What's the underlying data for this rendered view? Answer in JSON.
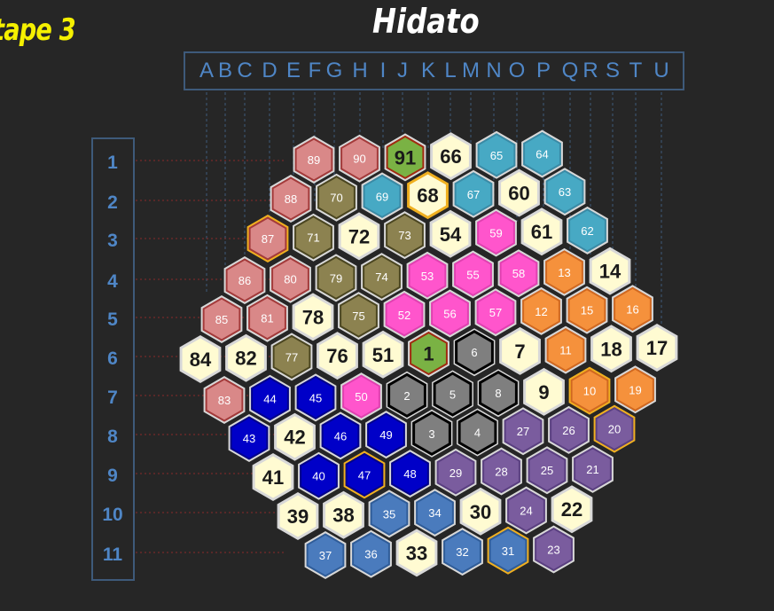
{
  "header": {
    "stage": "tape 3",
    "title": "Hidato"
  },
  "columns": [
    "A",
    "B",
    "C",
    "D",
    "E",
    "F",
    "G",
    "H",
    "I",
    "J",
    "K",
    "L",
    "M",
    "N",
    "O",
    "P",
    "Q",
    "R",
    "S",
    "T",
    "U"
  ],
  "rows": [
    "1",
    "2",
    "3",
    "4",
    "5",
    "6",
    "7",
    "8",
    "9",
    "10",
    "11"
  ],
  "colors": {
    "pink": "#d98888",
    "olive": "#8c8250",
    "teal": "#47a9c4",
    "cream": "#fffbd2",
    "magenta": "#ff55cc",
    "orange": "#f5913c",
    "gray": "#7f7f7f",
    "blue": "#0000c8",
    "purple": "#7a5c9e",
    "steel": "#4a7bbd",
    "green": "#7ab244"
  },
  "cells": [
    [
      [
        "89",
        "pink"
      ],
      [
        "90",
        "pink"
      ],
      [
        "91",
        "green"
      ],
      [
        "66",
        "cream"
      ],
      [
        "65",
        "teal"
      ],
      [
        "64",
        "teal"
      ]
    ],
    [
      [
        "88",
        "pink"
      ],
      [
        "70",
        "olive"
      ],
      [
        "69",
        "teal"
      ],
      [
        "68",
        "cream"
      ],
      [
        "67",
        "teal"
      ],
      [
        "60",
        "cream"
      ],
      [
        "63",
        "teal"
      ]
    ],
    [
      [
        "87",
        "pink"
      ],
      [
        "71",
        "olive"
      ],
      [
        "72",
        "cream"
      ],
      [
        "73",
        "olive"
      ],
      [
        "54",
        "cream"
      ],
      [
        "59",
        "magenta"
      ],
      [
        "61",
        "cream"
      ],
      [
        "62",
        "teal"
      ]
    ],
    [
      [
        "86",
        "pink"
      ],
      [
        "80",
        "pink"
      ],
      [
        "79",
        "olive"
      ],
      [
        "74",
        "olive"
      ],
      [
        "53",
        "magenta"
      ],
      [
        "55",
        "magenta"
      ],
      [
        "58",
        "magenta"
      ],
      [
        "13",
        "orange"
      ],
      [
        "14",
        "cream"
      ]
    ],
    [
      [
        "85",
        "pink"
      ],
      [
        "81",
        "pink"
      ],
      [
        "78",
        "cream"
      ],
      [
        "75",
        "olive"
      ],
      [
        "52",
        "magenta"
      ],
      [
        "56",
        "magenta"
      ],
      [
        "57",
        "magenta"
      ],
      [
        "12",
        "orange"
      ],
      [
        "15",
        "orange"
      ],
      [
        "16",
        "orange"
      ]
    ],
    [
      [
        "84",
        "cream"
      ],
      [
        "82",
        "cream"
      ],
      [
        "77",
        "olive"
      ],
      [
        "76",
        "cream"
      ],
      [
        "51",
        "cream"
      ],
      [
        "1",
        "green"
      ],
      [
        "6",
        "gray"
      ],
      [
        "7",
        "cream"
      ],
      [
        "11",
        "orange"
      ],
      [
        "18",
        "cream"
      ],
      [
        "17",
        "cream"
      ]
    ],
    [
      [
        "83",
        "pink"
      ],
      [
        "44",
        "blue"
      ],
      [
        "45",
        "blue"
      ],
      [
        "50",
        "magenta"
      ],
      [
        "2",
        "gray"
      ],
      [
        "5",
        "gray"
      ],
      [
        "8",
        "gray"
      ],
      [
        "9",
        "cream"
      ],
      [
        "10",
        "orange"
      ],
      [
        "19",
        "orange"
      ]
    ],
    [
      [
        "43",
        "blue"
      ],
      [
        "42",
        "cream"
      ],
      [
        "46",
        "blue"
      ],
      [
        "49",
        "blue"
      ],
      [
        "3",
        "gray"
      ],
      [
        "4",
        "gray"
      ],
      [
        "27",
        "purple"
      ],
      [
        "26",
        "purple"
      ],
      [
        "20",
        "purple"
      ]
    ],
    [
      [
        "41",
        "cream"
      ],
      [
        "40",
        "blue"
      ],
      [
        "47",
        "blue"
      ],
      [
        "48",
        "blue"
      ],
      [
        "29",
        "purple"
      ],
      [
        "28",
        "purple"
      ],
      [
        "25",
        "purple"
      ],
      [
        "21",
        "purple"
      ]
    ],
    [
      [
        "39",
        "cream"
      ],
      [
        "38",
        "cream"
      ],
      [
        "35",
        "steel"
      ],
      [
        "34",
        "steel"
      ],
      [
        "30",
        "cream"
      ],
      [
        "24",
        "purple"
      ],
      [
        "22",
        "cream"
      ]
    ],
    [
      [
        "37",
        "steel"
      ],
      [
        "36",
        "steel"
      ],
      [
        "33",
        "cream"
      ],
      [
        "32",
        "steel"
      ],
      [
        "31",
        "steel"
      ],
      [
        "23",
        "purple"
      ]
    ]
  ],
  "highlighted": [
    "87",
    "10",
    "20",
    "47",
    "31",
    "68"
  ]
}
